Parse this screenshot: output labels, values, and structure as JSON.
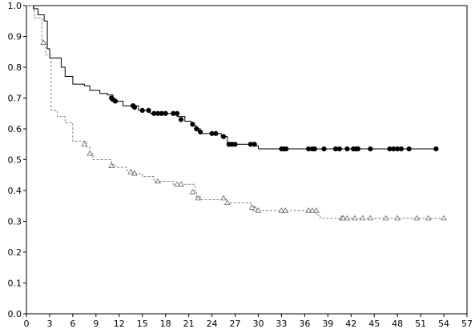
{
  "chart_data": {
    "type": "line",
    "title": "",
    "xlabel": "",
    "ylabel": "",
    "xlim": [
      0,
      57
    ],
    "ylim": [
      0,
      1
    ],
    "xticks": [
      "0",
      "3",
      "6",
      "9",
      "12",
      "15",
      "18",
      "21",
      "24",
      "27",
      "30",
      "33",
      "36",
      "39",
      "42",
      "45",
      "48",
      "51",
      "54",
      "57"
    ],
    "yticks": [
      "0.0",
      "0.1",
      "0.2",
      "0.3",
      "0.4",
      "0.5",
      "0.6",
      "0.7",
      "0.8",
      "0.9",
      "1.0"
    ],
    "grid": false,
    "series": [
      {
        "style": "solid",
        "color": "#000000",
        "marker": "filled-circle",
        "steps": [
          [
            0,
            1.0
          ],
          [
            0.9,
            0.99
          ],
          [
            1.5,
            0.97
          ],
          [
            2.3,
            0.95
          ],
          [
            2.7,
            0.86
          ],
          [
            3.0,
            0.83
          ],
          [
            4.5,
            0.8
          ],
          [
            5.0,
            0.77
          ],
          [
            6.0,
            0.745
          ],
          [
            7.5,
            0.74
          ],
          [
            8.2,
            0.725
          ],
          [
            9.5,
            0.715
          ],
          [
            10.5,
            0.71
          ],
          [
            11.2,
            0.69
          ],
          [
            12.5,
            0.675
          ],
          [
            14.5,
            0.66
          ],
          [
            16.0,
            0.65
          ],
          [
            19.5,
            0.64
          ],
          [
            20.5,
            0.625
          ],
          [
            21.3,
            0.61
          ],
          [
            22.0,
            0.6
          ],
          [
            22.5,
            0.585
          ],
          [
            25.2,
            0.575
          ],
          [
            26.0,
            0.55
          ],
          [
            29.5,
            0.545
          ],
          [
            30.0,
            0.535
          ],
          [
            53.2,
            0.535
          ]
        ],
        "censored": [
          [
            11.0,
            0.7
          ],
          [
            11.2,
            0.695
          ],
          [
            11.5,
            0.69
          ],
          [
            13.8,
            0.675
          ],
          [
            14.0,
            0.67
          ],
          [
            15.0,
            0.66
          ],
          [
            15.8,
            0.66
          ],
          [
            16.5,
            0.65
          ],
          [
            17.0,
            0.65
          ],
          [
            17.5,
            0.65
          ],
          [
            18.0,
            0.65
          ],
          [
            19.0,
            0.65
          ],
          [
            19.5,
            0.65
          ],
          [
            20.0,
            0.63
          ],
          [
            21.5,
            0.615
          ],
          [
            22.0,
            0.6
          ],
          [
            22.5,
            0.59
          ],
          [
            24.0,
            0.585
          ],
          [
            24.5,
            0.585
          ],
          [
            25.5,
            0.575
          ],
          [
            26.2,
            0.55
          ],
          [
            26.6,
            0.55
          ],
          [
            27.0,
            0.55
          ],
          [
            29.0,
            0.55
          ],
          [
            29.5,
            0.55
          ],
          [
            33.0,
            0.535
          ],
          [
            33.3,
            0.535
          ],
          [
            33.6,
            0.535
          ],
          [
            36.5,
            0.535
          ],
          [
            37.0,
            0.535
          ],
          [
            37.3,
            0.535
          ],
          [
            38.5,
            0.535
          ],
          [
            40.0,
            0.535
          ],
          [
            40.5,
            0.535
          ],
          [
            41.5,
            0.535
          ],
          [
            42.3,
            0.535
          ],
          [
            42.6,
            0.535
          ],
          [
            42.9,
            0.535
          ],
          [
            44.5,
            0.535
          ],
          [
            47.0,
            0.535
          ],
          [
            47.5,
            0.535
          ],
          [
            48.0,
            0.535
          ],
          [
            48.5,
            0.535
          ],
          [
            49.5,
            0.535
          ],
          [
            53.0,
            0.535
          ]
        ]
      },
      {
        "style": "dashed",
        "color": "#808080",
        "marker": "open-triangle",
        "steps": [
          [
            0,
            1.0
          ],
          [
            1.0,
            0.96
          ],
          [
            2.0,
            0.88
          ],
          [
            2.5,
            0.84
          ],
          [
            3.2,
            0.66
          ],
          [
            4.0,
            0.64
          ],
          [
            5.0,
            0.62
          ],
          [
            6.0,
            0.56
          ],
          [
            7.8,
            0.54
          ],
          [
            8.2,
            0.52
          ],
          [
            8.6,
            0.5
          ],
          [
            11.0,
            0.485
          ],
          [
            11.5,
            0.475
          ],
          [
            13.0,
            0.465
          ],
          [
            14.0,
            0.455
          ],
          [
            15.0,
            0.445
          ],
          [
            16.5,
            0.43
          ],
          [
            19.0,
            0.42
          ],
          [
            21.8,
            0.4
          ],
          [
            22.0,
            0.38
          ],
          [
            22.5,
            0.37
          ],
          [
            26.0,
            0.36
          ],
          [
            29.0,
            0.35
          ],
          [
            29.5,
            0.335
          ],
          [
            37.5,
            0.32
          ],
          [
            38.0,
            0.31
          ],
          [
            54.2,
            0.31
          ]
        ],
        "censored": [
          [
            2.2,
            0.88
          ],
          [
            7.5,
            0.55
          ],
          [
            8.2,
            0.52
          ],
          [
            11.0,
            0.48
          ],
          [
            13.5,
            0.46
          ],
          [
            14.0,
            0.455
          ],
          [
            17.0,
            0.43
          ],
          [
            19.5,
            0.42
          ],
          [
            20.0,
            0.42
          ],
          [
            21.5,
            0.395
          ],
          [
            22.2,
            0.375
          ],
          [
            25.5,
            0.375
          ],
          [
            26.0,
            0.36
          ],
          [
            29.2,
            0.345
          ],
          [
            29.6,
            0.34
          ],
          [
            30.0,
            0.335
          ],
          [
            33.0,
            0.335
          ],
          [
            33.5,
            0.335
          ],
          [
            36.5,
            0.335
          ],
          [
            37.0,
            0.335
          ],
          [
            37.5,
            0.335
          ],
          [
            40.8,
            0.31
          ],
          [
            41.0,
            0.31
          ],
          [
            41.5,
            0.31
          ],
          [
            42.5,
            0.31
          ],
          [
            43.5,
            0.31
          ],
          [
            44.5,
            0.31
          ],
          [
            46.5,
            0.31
          ],
          [
            48.0,
            0.31
          ],
          [
            50.5,
            0.31
          ],
          [
            52.0,
            0.31
          ],
          [
            54.0,
            0.31
          ]
        ]
      }
    ]
  }
}
